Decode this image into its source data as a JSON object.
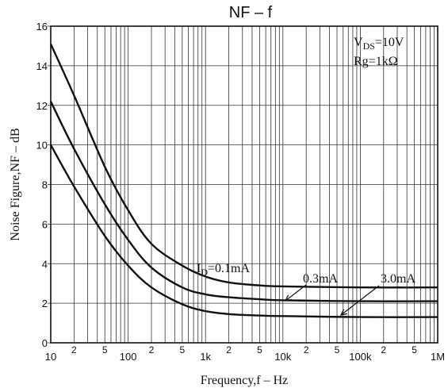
{
  "chart_data": {
    "type": "line",
    "title": "NF  –  f",
    "xlabel": "Frequency,f – Hz",
    "ylabel": "Noise Figure,NF – dB",
    "x_scale": "log",
    "xlim": [
      10,
      1000000
    ],
    "ylim": [
      0,
      16
    ],
    "x_ticks_major": [
      {
        "value": 10,
        "label": "10"
      },
      {
        "value": 100,
        "label": "100"
      },
      {
        "value": 1000,
        "label": "1k"
      },
      {
        "value": 10000,
        "label": "10k"
      },
      {
        "value": 100000,
        "label": "100k"
      },
      {
        "value": 1000000,
        "label": "1M"
      }
    ],
    "x_ticks_minor": [
      {
        "value": 20,
        "label": "2"
      },
      {
        "value": 50,
        "label": "5"
      },
      {
        "value": 200,
        "label": "2"
      },
      {
        "value": 500,
        "label": "5"
      },
      {
        "value": 2000,
        "label": "2"
      },
      {
        "value": 5000,
        "label": "5"
      },
      {
        "value": 20000,
        "label": "2"
      },
      {
        "value": 50000,
        "label": "5"
      },
      {
        "value": 200000,
        "label": "2"
      },
      {
        "value": 500000,
        "label": "5"
      }
    ],
    "y_ticks": [
      {
        "value": 0,
        "label": "0"
      },
      {
        "value": 2,
        "label": "2"
      },
      {
        "value": 4,
        "label": "4"
      },
      {
        "value": 6,
        "label": "6"
      },
      {
        "value": 8,
        "label": "8"
      },
      {
        "value": 10,
        "label": "10"
      },
      {
        "value": 12,
        "label": "12"
      },
      {
        "value": 14,
        "label": "14"
      },
      {
        "value": 16,
        "label": "16"
      }
    ],
    "grid": true,
    "conditions": [
      "V_DS = 10V",
      "Rg = 1kΩ"
    ],
    "conditions_display": {
      "vds_main": "V",
      "vds_sub": "DS",
      "vds_rest": "=10V",
      "rg": "Rg=1kΩ"
    },
    "series_labels": {
      "s1_prefix": "I",
      "s1_sub": "D",
      "s1_rest": "=0.1mA",
      "s2": "0.3mA",
      "s3": "3.0mA"
    },
    "series": [
      {
        "name": "I_D = 0.1mA",
        "points": [
          [
            10,
            15.1
          ],
          [
            20,
            12.5
          ],
          [
            50,
            8.9
          ],
          [
            100,
            6.7
          ],
          [
            200,
            5.0
          ],
          [
            500,
            3.9
          ],
          [
            1000,
            3.35
          ],
          [
            2000,
            3.05
          ],
          [
            5000,
            2.9
          ],
          [
            10000,
            2.85
          ],
          [
            100000,
            2.8
          ],
          [
            1000000,
            2.8
          ]
        ]
      },
      {
        "name": "0.3mA",
        "points": [
          [
            10,
            12.2
          ],
          [
            20,
            9.8
          ],
          [
            50,
            7.0
          ],
          [
            100,
            5.2
          ],
          [
            200,
            3.8
          ],
          [
            500,
            2.8
          ],
          [
            1000,
            2.45
          ],
          [
            2000,
            2.3
          ],
          [
            5000,
            2.2
          ],
          [
            10000,
            2.15
          ],
          [
            100000,
            2.1
          ],
          [
            1000000,
            2.1
          ]
        ]
      },
      {
        "name": "3.0mA",
        "points": [
          [
            10,
            10.0
          ],
          [
            20,
            7.9
          ],
          [
            50,
            5.4
          ],
          [
            100,
            3.9
          ],
          [
            200,
            2.8
          ],
          [
            500,
            1.95
          ],
          [
            1000,
            1.6
          ],
          [
            2000,
            1.45
          ],
          [
            5000,
            1.38
          ],
          [
            10000,
            1.35
          ],
          [
            100000,
            1.3
          ],
          [
            1000000,
            1.3
          ]
        ]
      }
    ]
  }
}
